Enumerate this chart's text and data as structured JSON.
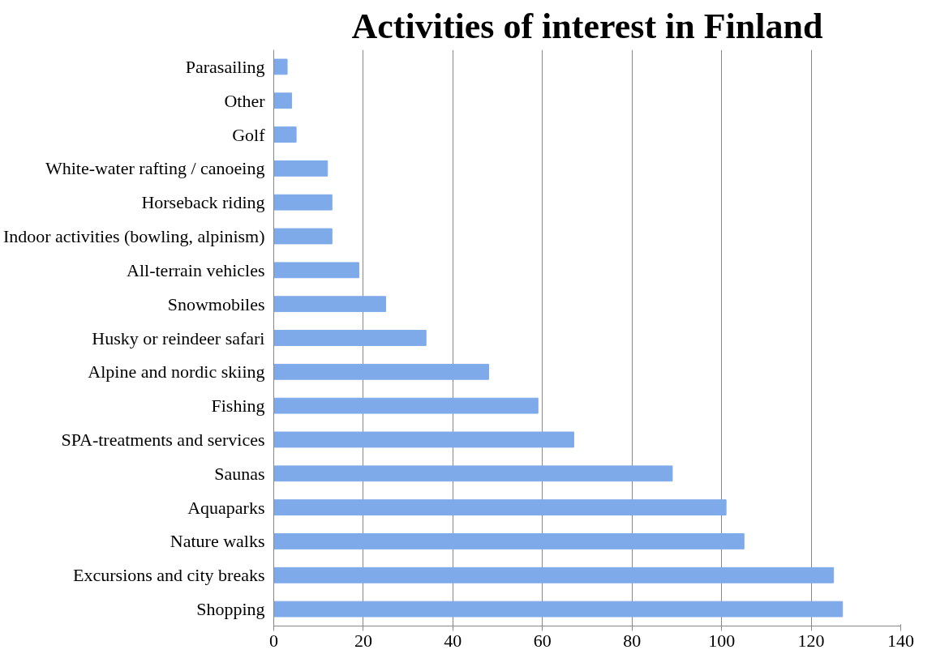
{
  "chart_data": {
    "type": "bar",
    "orientation": "horizontal",
    "title": "Activities of interest in Finland",
    "categories": [
      "Parasailing",
      "Other",
      "Golf",
      "White-water rafting / canoeing",
      "Horseback riding",
      "Indoor activities (bowling, alpinism)",
      "All-terrain vehicles",
      "Snowmobiles",
      "Husky or reindeer safari",
      "Alpine and nordic skiing",
      "Fishing",
      "SPA-treatments and services",
      "Saunas",
      "Aquaparks",
      "Nature walks",
      "Excursions and city breaks",
      "Shopping"
    ],
    "values": [
      3,
      4,
      5,
      12,
      13,
      13,
      19,
      25,
      34,
      48,
      59,
      67,
      89,
      101,
      105,
      125,
      127
    ],
    "color": "#7faaea",
    "xlim": [
      0,
      140
    ],
    "xticks": [
      0,
      20,
      40,
      60,
      80,
      100,
      120,
      140
    ],
    "grid": "x"
  }
}
